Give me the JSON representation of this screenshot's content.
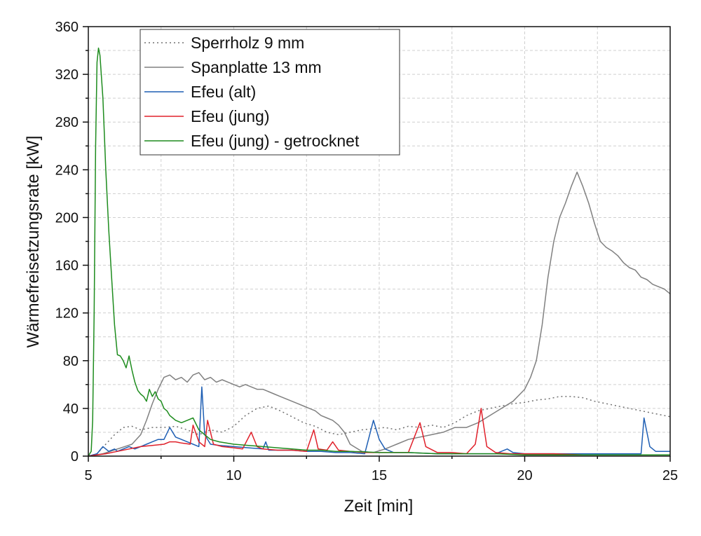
{
  "chart_data": {
    "type": "line",
    "title": "",
    "xlabel": "Zeit [min]",
    "ylabel": "Wärmefreisetzungsrate [kW]",
    "xlim": [
      5,
      25
    ],
    "ylim": [
      0,
      360
    ],
    "x_ticks": [
      5,
      10,
      15,
      20,
      25
    ],
    "y_ticks": [
      0,
      40,
      80,
      120,
      160,
      200,
      240,
      280,
      320,
      360
    ],
    "grid": true,
    "legend_position": "top-left",
    "series": [
      {
        "name": "Sperrholz 9 mm",
        "color": "#707070",
        "style": "dotted",
        "points": [
          [
            5,
            0
          ],
          [
            5.3,
            2
          ],
          [
            5.6,
            10
          ],
          [
            5.9,
            18
          ],
          [
            6.2,
            24
          ],
          [
            6.5,
            25
          ],
          [
            6.8,
            22
          ],
          [
            7.2,
            24
          ],
          [
            7.6,
            24
          ],
          [
            8,
            25
          ],
          [
            8.4,
            22
          ],
          [
            8.8,
            18
          ],
          [
            9.2,
            22
          ],
          [
            9.6,
            20
          ],
          [
            10,
            25
          ],
          [
            10.4,
            34
          ],
          [
            10.8,
            40
          ],
          [
            11.2,
            42
          ],
          [
            11.6,
            38
          ],
          [
            12,
            33
          ],
          [
            12.4,
            28
          ],
          [
            12.8,
            25
          ],
          [
            13.2,
            20
          ],
          [
            13.6,
            18
          ],
          [
            14,
            20
          ],
          [
            14.4,
            22
          ],
          [
            14.8,
            23
          ],
          [
            15.2,
            24
          ],
          [
            15.6,
            22
          ],
          [
            16,
            25
          ],
          [
            16.4,
            24
          ],
          [
            16.8,
            26
          ],
          [
            17.2,
            24
          ],
          [
            17.6,
            28
          ],
          [
            18,
            34
          ],
          [
            18.4,
            38
          ],
          [
            18.8,
            40
          ],
          [
            19.2,
            42
          ],
          [
            19.6,
            44
          ],
          [
            20,
            45
          ],
          [
            20.4,
            47
          ],
          [
            20.8,
            48
          ],
          [
            21.2,
            50
          ],
          [
            21.6,
            50
          ],
          [
            22,
            49
          ],
          [
            22.4,
            46
          ],
          [
            22.8,
            44
          ],
          [
            23.2,
            42
          ],
          [
            23.6,
            40
          ],
          [
            24,
            38
          ],
          [
            24.4,
            36
          ],
          [
            24.8,
            34
          ],
          [
            25,
            33
          ]
        ]
      },
      {
        "name": "Spanplatte 13 mm",
        "color": "#808080",
        "style": "solid",
        "points": [
          [
            5,
            0
          ],
          [
            5.5,
            2
          ],
          [
            6,
            6
          ],
          [
            6.5,
            10
          ],
          [
            6.8,
            18
          ],
          [
            7,
            30
          ],
          [
            7.2,
            44
          ],
          [
            7.4,
            56
          ],
          [
            7.6,
            66
          ],
          [
            7.8,
            68
          ],
          [
            8,
            64
          ],
          [
            8.2,
            66
          ],
          [
            8.4,
            62
          ],
          [
            8.6,
            68
          ],
          [
            8.8,
            70
          ],
          [
            9,
            64
          ],
          [
            9.2,
            66
          ],
          [
            9.4,
            62
          ],
          [
            9.6,
            64
          ],
          [
            9.8,
            62
          ],
          [
            10,
            60
          ],
          [
            10.2,
            58
          ],
          [
            10.4,
            60
          ],
          [
            10.6,
            58
          ],
          [
            10.8,
            56
          ],
          [
            11,
            56
          ],
          [
            11.2,
            54
          ],
          [
            11.4,
            52
          ],
          [
            11.6,
            50
          ],
          [
            11.8,
            48
          ],
          [
            12,
            46
          ],
          [
            12.2,
            44
          ],
          [
            12.4,
            42
          ],
          [
            12.6,
            40
          ],
          [
            12.8,
            38
          ],
          [
            13,
            34
          ],
          [
            13.2,
            32
          ],
          [
            13.4,
            30
          ],
          [
            13.6,
            26
          ],
          [
            13.8,
            20
          ],
          [
            14,
            10
          ],
          [
            14.4,
            4
          ],
          [
            14.8,
            3
          ],
          [
            15.2,
            6
          ],
          [
            15.6,
            10
          ],
          [
            16,
            14
          ],
          [
            16.4,
            16
          ],
          [
            16.8,
            18
          ],
          [
            17.2,
            20
          ],
          [
            17.6,
            24
          ],
          [
            18,
            24
          ],
          [
            18.4,
            28
          ],
          [
            18.8,
            34
          ],
          [
            19.2,
            40
          ],
          [
            19.6,
            46
          ],
          [
            20,
            56
          ],
          [
            20.2,
            66
          ],
          [
            20.4,
            80
          ],
          [
            20.6,
            110
          ],
          [
            20.8,
            150
          ],
          [
            21,
            180
          ],
          [
            21.2,
            200
          ],
          [
            21.4,
            212
          ],
          [
            21.6,
            226
          ],
          [
            21.8,
            238
          ],
          [
            22,
            226
          ],
          [
            22.2,
            212
          ],
          [
            22.4,
            195
          ],
          [
            22.6,
            180
          ],
          [
            22.8,
            175
          ],
          [
            23,
            172
          ],
          [
            23.2,
            168
          ],
          [
            23.4,
            162
          ],
          [
            23.6,
            158
          ],
          [
            23.8,
            156
          ],
          [
            24,
            150
          ],
          [
            24.2,
            148
          ],
          [
            24.4,
            144
          ],
          [
            24.6,
            142
          ],
          [
            24.8,
            140
          ],
          [
            25,
            136
          ]
        ]
      },
      {
        "name": "Efeu (alt)",
        "color": "#1f5fb4",
        "style": "solid",
        "points": [
          [
            5,
            0
          ],
          [
            5.3,
            2
          ],
          [
            5.5,
            8
          ],
          [
            5.7,
            4
          ],
          [
            5.9,
            6
          ],
          [
            6,
            4
          ],
          [
            6.2,
            6
          ],
          [
            6.4,
            8
          ],
          [
            6.6,
            6
          ],
          [
            6.8,
            8
          ],
          [
            7,
            10
          ],
          [
            7.2,
            12
          ],
          [
            7.4,
            14
          ],
          [
            7.6,
            14
          ],
          [
            7.8,
            24
          ],
          [
            8,
            16
          ],
          [
            8.2,
            14
          ],
          [
            8.4,
            12
          ],
          [
            8.6,
            10
          ],
          [
            8.8,
            8
          ],
          [
            8.9,
            58
          ],
          [
            9,
            18
          ],
          [
            9.2,
            10
          ],
          [
            9.5,
            9
          ],
          [
            10,
            8
          ],
          [
            10.5,
            7
          ],
          [
            11,
            6
          ],
          [
            11.1,
            12
          ],
          [
            11.2,
            5
          ],
          [
            11.5,
            5
          ],
          [
            12,
            5
          ],
          [
            12.5,
            4
          ],
          [
            13,
            4
          ],
          [
            13.5,
            3
          ],
          [
            14,
            3
          ],
          [
            14.5,
            2
          ],
          [
            14.8,
            30
          ],
          [
            15,
            14
          ],
          [
            15.2,
            6
          ],
          [
            15.5,
            3
          ],
          [
            16,
            3
          ],
          [
            17,
            2
          ],
          [
            18,
            2
          ],
          [
            19,
            2
          ],
          [
            19.4,
            6
          ],
          [
            19.6,
            3
          ],
          [
            20,
            2
          ],
          [
            21,
            2
          ],
          [
            22,
            2
          ],
          [
            23,
            2
          ],
          [
            24,
            2
          ],
          [
            24.1,
            32
          ],
          [
            24.3,
            8
          ],
          [
            24.5,
            4
          ],
          [
            25,
            4
          ]
        ]
      },
      {
        "name": "Efeu (jung)",
        "color": "#e0202a",
        "style": "solid",
        "points": [
          [
            5,
            0
          ],
          [
            5.3,
            1
          ],
          [
            5.6,
            2
          ],
          [
            6,
            4
          ],
          [
            6.4,
            6
          ],
          [
            6.8,
            8
          ],
          [
            7.2,
            9
          ],
          [
            7.6,
            10
          ],
          [
            7.8,
            12
          ],
          [
            8,
            12
          ],
          [
            8.2,
            11
          ],
          [
            8.5,
            10
          ],
          [
            8.6,
            26
          ],
          [
            8.8,
            12
          ],
          [
            9,
            8
          ],
          [
            9.1,
            30
          ],
          [
            9.3,
            10
          ],
          [
            9.6,
            8
          ],
          [
            10,
            7
          ],
          [
            10.3,
            6
          ],
          [
            10.6,
            20
          ],
          [
            10.8,
            8
          ],
          [
            11,
            6
          ],
          [
            11.5,
            5
          ],
          [
            12,
            5
          ],
          [
            12.5,
            4
          ],
          [
            12.75,
            22
          ],
          [
            12.9,
            6
          ],
          [
            13.2,
            5
          ],
          [
            13.4,
            12
          ],
          [
            13.6,
            5
          ],
          [
            14,
            4
          ],
          [
            14.5,
            3
          ],
          [
            15,
            3
          ],
          [
            15.5,
            3
          ],
          [
            16,
            3
          ],
          [
            16.4,
            28
          ],
          [
            16.6,
            8
          ],
          [
            17,
            3
          ],
          [
            17.5,
            3
          ],
          [
            18,
            2
          ],
          [
            18.3,
            10
          ],
          [
            18.5,
            40
          ],
          [
            18.7,
            8
          ],
          [
            19,
            3
          ],
          [
            19.5,
            2
          ],
          [
            20,
            2
          ],
          [
            21,
            2
          ],
          [
            22,
            1
          ],
          [
            23,
            1
          ],
          [
            24,
            1
          ],
          [
            25,
            1
          ]
        ]
      },
      {
        "name": "Efeu (jung) - getrocknet",
        "color": "#1e8c1e",
        "style": "solid",
        "points": [
          [
            5,
            0
          ],
          [
            5.1,
            4
          ],
          [
            5.15,
            30
          ],
          [
            5.2,
            120
          ],
          [
            5.25,
            260
          ],
          [
            5.3,
            330
          ],
          [
            5.35,
            342
          ],
          [
            5.4,
            336
          ],
          [
            5.5,
            300
          ],
          [
            5.6,
            240
          ],
          [
            5.7,
            190
          ],
          [
            5.8,
            150
          ],
          [
            5.9,
            110
          ],
          [
            6,
            85
          ],
          [
            6.1,
            84
          ],
          [
            6.2,
            80
          ],
          [
            6.3,
            74
          ],
          [
            6.4,
            84
          ],
          [
            6.5,
            72
          ],
          [
            6.6,
            62
          ],
          [
            6.7,
            55
          ],
          [
            6.8,
            52
          ],
          [
            6.9,
            50
          ],
          [
            7,
            46
          ],
          [
            7.1,
            56
          ],
          [
            7.2,
            50
          ],
          [
            7.3,
            54
          ],
          [
            7.4,
            48
          ],
          [
            7.5,
            46
          ],
          [
            7.6,
            40
          ],
          [
            7.7,
            38
          ],
          [
            7.8,
            34
          ],
          [
            7.9,
            32
          ],
          [
            8,
            30
          ],
          [
            8.2,
            28
          ],
          [
            8.4,
            30
          ],
          [
            8.6,
            32
          ],
          [
            8.8,
            22
          ],
          [
            9,
            18
          ],
          [
            9.2,
            14
          ],
          [
            9.5,
            12
          ],
          [
            10,
            10
          ],
          [
            10.5,
            9
          ],
          [
            11,
            8
          ],
          [
            11.5,
            7
          ],
          [
            12,
            6
          ],
          [
            12.5,
            5
          ],
          [
            13,
            5
          ],
          [
            13.5,
            4
          ],
          [
            14,
            4
          ],
          [
            15,
            3
          ],
          [
            16,
            3
          ],
          [
            17,
            2
          ],
          [
            18,
            2
          ],
          [
            19,
            2
          ],
          [
            20,
            1
          ],
          [
            21,
            1
          ],
          [
            22,
            1
          ],
          [
            23,
            1
          ],
          [
            24,
            1
          ],
          [
            25,
            1
          ]
        ]
      }
    ]
  }
}
